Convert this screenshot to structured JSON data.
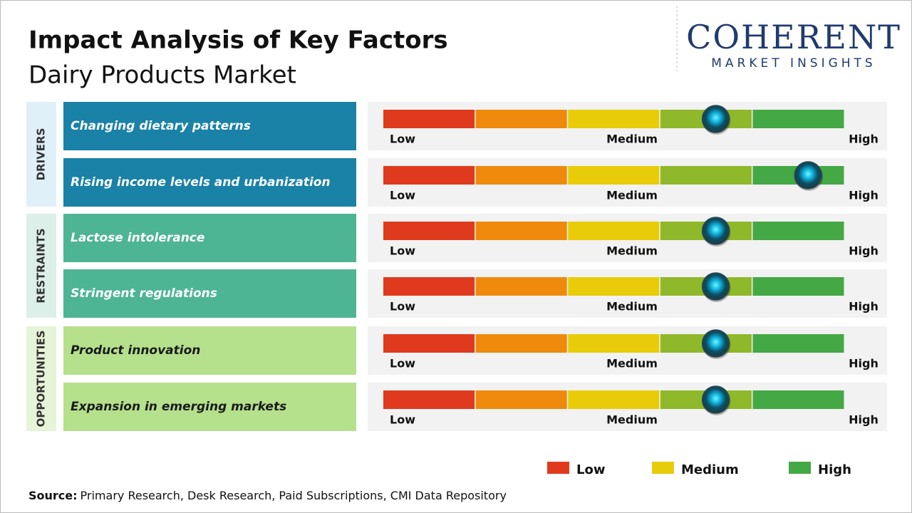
{
  "header": {
    "title": "Impact Analysis of Key Factors",
    "subtitle": "Dairy Products Market"
  },
  "logo": {
    "name": "COHERENT",
    "tagline": "MARKET INSIGHTS"
  },
  "scale": {
    "labels": [
      "Low",
      "Medium",
      "High"
    ],
    "colors": [
      "#e03a1e",
      "#ef8a0c",
      "#e8cc0a",
      "#8fb82a",
      "#44a844"
    ]
  },
  "groups": [
    {
      "name": "DRIVERS",
      "color": "#1a82a6",
      "text_color": "#ffffff",
      "band_color": "#dff0f8",
      "factors": [
        {
          "label": "Changing dietary patterns",
          "impact": 3.6
        },
        {
          "label": "Rising income levels and urbanization",
          "impact": 4.6
        }
      ]
    },
    {
      "name": "RESTRAINTS",
      "color": "#4db594",
      "text_color": "#ffffff",
      "band_color": "#dcefe9",
      "factors": [
        {
          "label": "Lactose intolerance",
          "impact": 3.6
        },
        {
          "label": "Stringent regulations",
          "impact": 3.6
        }
      ]
    },
    {
      "name": "OPPORTUNITIES",
      "color": "#b5e08c",
      "text_color": "#1a1a1a",
      "band_color": "#e6f4d8",
      "factors": [
        {
          "label": "Product innovation",
          "impact": 3.6
        },
        {
          "label": "Expansion in emerging markets",
          "impact": 3.6
        }
      ]
    }
  ],
  "legend": [
    {
      "label": "Low",
      "color": "#e03a1e"
    },
    {
      "label": "Medium",
      "color": "#e8cc0a"
    },
    {
      "label": "High",
      "color": "#44a844"
    }
  ],
  "source": {
    "label": "Source:",
    "text": "Primary Research, Desk Research, Paid Subscriptions, CMI Data Repository"
  }
}
